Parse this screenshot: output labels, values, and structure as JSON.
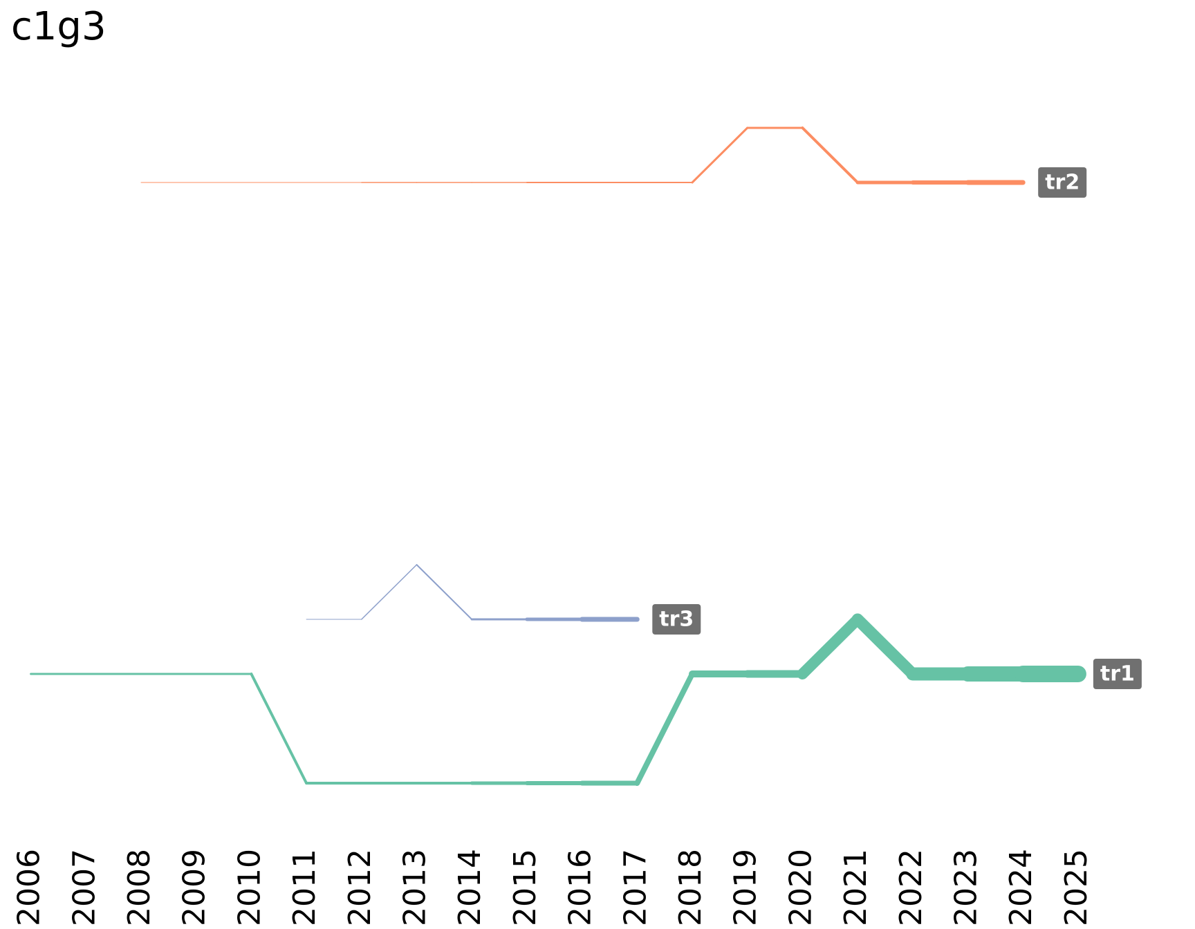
{
  "chart_data": {
    "type": "line",
    "title": "c1g3",
    "categories": [
      "2006",
      "2007",
      "2008",
      "2009",
      "2010",
      "2011",
      "2012",
      "2013",
      "2014",
      "2015",
      "2016",
      "2017",
      "2018",
      "2019",
      "2020",
      "2021",
      "2022",
      "2023",
      "2024",
      "2025"
    ],
    "ylim": [
      14,
      0
    ],
    "series": [
      {
        "name": "tr1",
        "color": "#66c2a5",
        "values": [
          11,
          11,
          11,
          11,
          11,
          13,
          13,
          13,
          13,
          13,
          13,
          13,
          11,
          11,
          11,
          10,
          11,
          11,
          11,
          11
        ],
        "sizes": [
          3,
          3,
          3,
          3,
          3,
          4,
          4,
          4,
          4,
          5,
          6,
          7,
          8,
          10,
          11,
          16,
          17,
          19,
          22,
          24
        ]
      },
      {
        "name": "tr2",
        "color": "#fc8d62",
        "values": [
          null,
          null,
          2,
          2,
          2,
          2,
          2,
          2,
          2,
          2,
          2,
          2,
          2,
          1,
          1,
          2,
          2,
          2,
          2,
          null
        ],
        "sizes": [
          null,
          null,
          1,
          1,
          1,
          1,
          1,
          1.5,
          1.5,
          1.5,
          2,
          2,
          2,
          3,
          3,
          4,
          5,
          6,
          7,
          null
        ]
      },
      {
        "name": "tr3",
        "color": "#8da0cb",
        "values": [
          null,
          null,
          null,
          null,
          null,
          10,
          10,
          9,
          10,
          10,
          10,
          10,
          null,
          null,
          null,
          null,
          null,
          null,
          null,
          null
        ],
        "sizes": [
          null,
          null,
          null,
          null,
          null,
          1,
          1,
          1.5,
          2,
          3,
          5,
          7,
          null,
          null,
          null,
          null,
          null,
          null,
          null,
          null
        ]
      }
    ]
  }
}
